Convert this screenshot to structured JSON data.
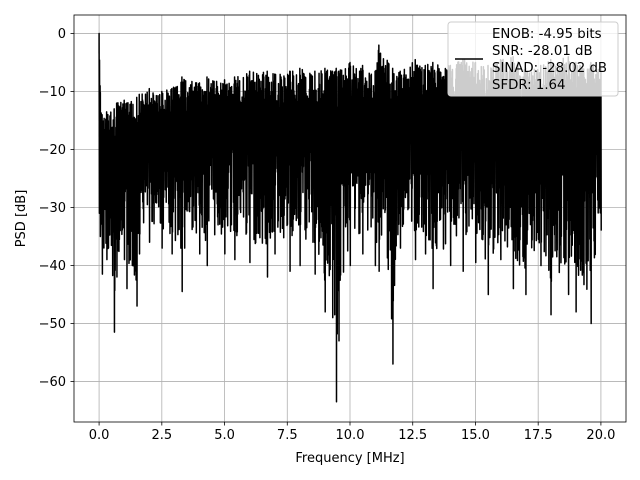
{
  "chart_data": {
    "type": "line",
    "title": "",
    "xlabel": "Frequency [MHz]",
    "ylabel": "PSD [dB]",
    "xlim": [
      -1.0,
      21.0
    ],
    "ylim": [
      -67.0,
      3.2
    ],
    "xticks": [
      0.0,
      2.5,
      5.0,
      7.5,
      10.0,
      12.5,
      15.0,
      17.5,
      20.0
    ],
    "xtick_labels": [
      "0.0",
      "2.5",
      "5.0",
      "7.5",
      "10.0",
      "12.5",
      "15.0",
      "17.5",
      "20.0"
    ],
    "yticks": [
      0,
      -10,
      -20,
      -30,
      -40,
      -50,
      -60
    ],
    "ytick_labels": [
      "0",
      "−10",
      "−20",
      "−30",
      "−40",
      "−50",
      "−60"
    ],
    "grid": true,
    "legend_position": "upper right",
    "legend_entries": [
      "ENOB: -4.95 bits",
      "SNR: -28.01 dB",
      "SINAD: -28.02 dB",
      "SFDR: 1.64"
    ],
    "series": [
      {
        "name": "ENOB: -4.95 bits\nSNR: -28.01 dB\nSINAD: -28.02 dB\nSFDR: 1.64",
        "color": "#000000",
        "x": [
          0.0,
          0.04,
          0.12,
          0.3,
          0.6,
          0.7,
          1.0,
          1.1,
          1.5,
          1.6,
          2.0,
          2.5,
          2.9,
          3.3,
          3.4,
          4.0,
          4.3,
          5.0,
          5.4,
          6.0,
          6.7,
          7.0,
          7.6,
          8.0,
          8.6,
          9.0,
          9.3,
          9.45,
          9.55,
          10.0,
          10.5,
          11.0,
          11.15,
          11.7,
          12.0,
          12.6,
          13.0,
          13.3,
          14.0,
          14.5,
          15.0,
          15.5,
          16.0,
          16.5,
          17.0,
          17.6,
          18.0,
          18.7,
          19.0,
          19.6,
          20.0
        ],
        "y_upper": [
          0.0,
          -9.0,
          -14.0,
          -13.5,
          -13.0,
          -12.0,
          -11.5,
          -12.0,
          -11.0,
          -10.5,
          -9.5,
          -10.0,
          -9.5,
          -7.5,
          -8.0,
          -8.5,
          -7.5,
          -8.0,
          -7.5,
          -6.5,
          -6.5,
          -7.0,
          -6.5,
          -6.0,
          -6.5,
          -6.0,
          -6.5,
          -6.0,
          -6.5,
          -5.0,
          -5.5,
          -6.5,
          -2.0,
          -6.0,
          -6.5,
          -4.5,
          -5.5,
          -5.0,
          -5.5,
          -4.5,
          -5.0,
          -5.5,
          -4.5,
          -4.0,
          -6.0,
          -5.5,
          -4.5,
          -4.0,
          -5.0,
          -5.0,
          -6.0
        ],
        "y_lower": [
          -31.0,
          -35.0,
          -41.5,
          -39.0,
          -51.5,
          -42.0,
          -39.0,
          -44.0,
          -47.0,
          -38.0,
          -36.0,
          -37.0,
          -38.0,
          -44.5,
          -37.0,
          -38.0,
          -40.0,
          -38.0,
          -39.0,
          -39.5,
          -42.0,
          -38.0,
          -41.0,
          -40.0,
          -41.5,
          -48.0,
          -49.0,
          -63.5,
          -53.0,
          -40.0,
          -38.0,
          -40.0,
          -41.0,
          -57.0,
          -37.0,
          -39.0,
          -38.0,
          -44.0,
          -40.0,
          -41.0,
          -39.5,
          -45.0,
          -39.0,
          -44.0,
          -45.0,
          -40.0,
          -48.5,
          -45.0,
          -48.0,
          -50.0,
          -34.0
        ]
      }
    ]
  }
}
